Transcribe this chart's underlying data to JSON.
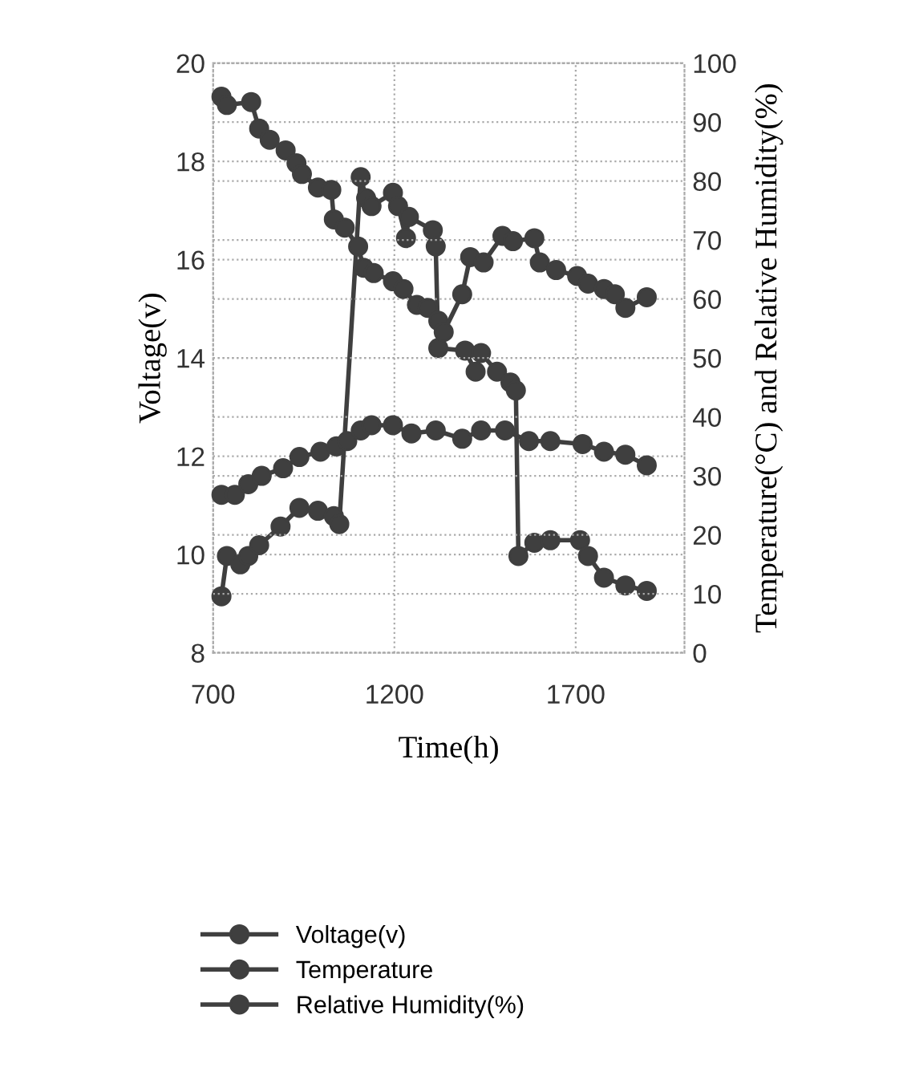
{
  "chart_data": {
    "type": "line",
    "xlabel": "Time(h)",
    "ylabel": "Voltage(v)",
    "y2label": "Temperature(°C) and Relative Humidity(%)",
    "xlim": [
      700,
      2000
    ],
    "xticks": [
      700,
      1200,
      1700
    ],
    "ylim": [
      8,
      20
    ],
    "yticks": [
      8,
      10,
      12,
      14,
      16,
      18,
      20
    ],
    "y2lim": [
      0,
      100
    ],
    "y2ticks": [
      0,
      10,
      20,
      30,
      40,
      50,
      60,
      70,
      80,
      90,
      100
    ],
    "grid": true,
    "legend": "bottom",
    "marker": "circle",
    "line_style": "solid",
    "series": [
      {
        "name": "Voltage(v)",
        "color": "#3f3f3f",
        "x": [
          723,
          738,
          775,
          797,
          827,
          886,
          938,
          989,
          1033,
          1048,
          1107,
          1122,
          1137,
          1196,
          1210,
          1232,
          1240,
          1306,
          1314,
          1321,
          1395,
          1424,
          1439,
          1483,
          1520,
          1535,
          1542,
          1586,
          1630,
          1712,
          1734,
          1778,
          1837,
          1896
        ],
        "values": [
          9.15,
          9.97,
          9.8,
          9.97,
          10.19,
          10.57,
          10.95,
          10.89,
          10.78,
          10.62,
          17.68,
          17.25,
          17.09,
          17.36,
          17.09,
          16.44,
          16.87,
          16.6,
          16.27,
          14.2,
          14.15,
          13.72,
          14.1,
          13.72,
          13.5,
          13.34,
          9.97,
          10.24,
          10.29,
          10.29,
          9.97,
          9.53,
          9.37,
          9.26
        ]
      },
      {
        "name": "Temperature",
        "color": "#3f3f3f",
        "axis": "y2",
        "x": [
          723,
          760,
          797,
          834,
          893,
          938,
          996,
          1040,
          1070,
          1107,
          1137,
          1196,
          1247,
          1314,
          1387,
          1439,
          1505,
          1571,
          1630,
          1719,
          1778,
          1837,
          1896
        ],
        "values": [
          26.8,
          26.8,
          28.6,
          30.0,
          31.3,
          33.2,
          34.1,
          35.0,
          35.9,
          37.7,
          38.6,
          38.6,
          37.2,
          37.7,
          36.3,
          37.7,
          37.7,
          35.9,
          35.9,
          35.4,
          34.1,
          33.6,
          31.8
        ]
      },
      {
        "name": "Relative Humidity(%)",
        "color": "#3f3f3f",
        "axis": "y2",
        "x": [
          723,
          738,
          805,
          827,
          856,
          900,
          930,
          945,
          989,
          1026,
          1033,
          1063,
          1100,
          1115,
          1143,
          1196,
          1225,
          1262,
          1292,
          1321,
          1336,
          1387,
          1409,
          1446,
          1498,
          1527,
          1586,
          1601,
          1646,
          1704,
          1734,
          1778,
          1808,
          1837,
          1896
        ],
        "values": [
          94.3,
          92.9,
          93.4,
          88.9,
          87.0,
          85.2,
          83.0,
          81.2,
          78.9,
          78.5,
          73.5,
          72.1,
          68.9,
          65.3,
          64.4,
          63.0,
          61.7,
          59.0,
          58.5,
          56.3,
          54.4,
          60.8,
          67.1,
          66.2,
          70.7,
          69.8,
          70.3,
          66.2,
          64.9,
          63.9,
          62.6,
          61.7,
          60.8,
          58.5,
          60.3
        ]
      }
    ]
  }
}
